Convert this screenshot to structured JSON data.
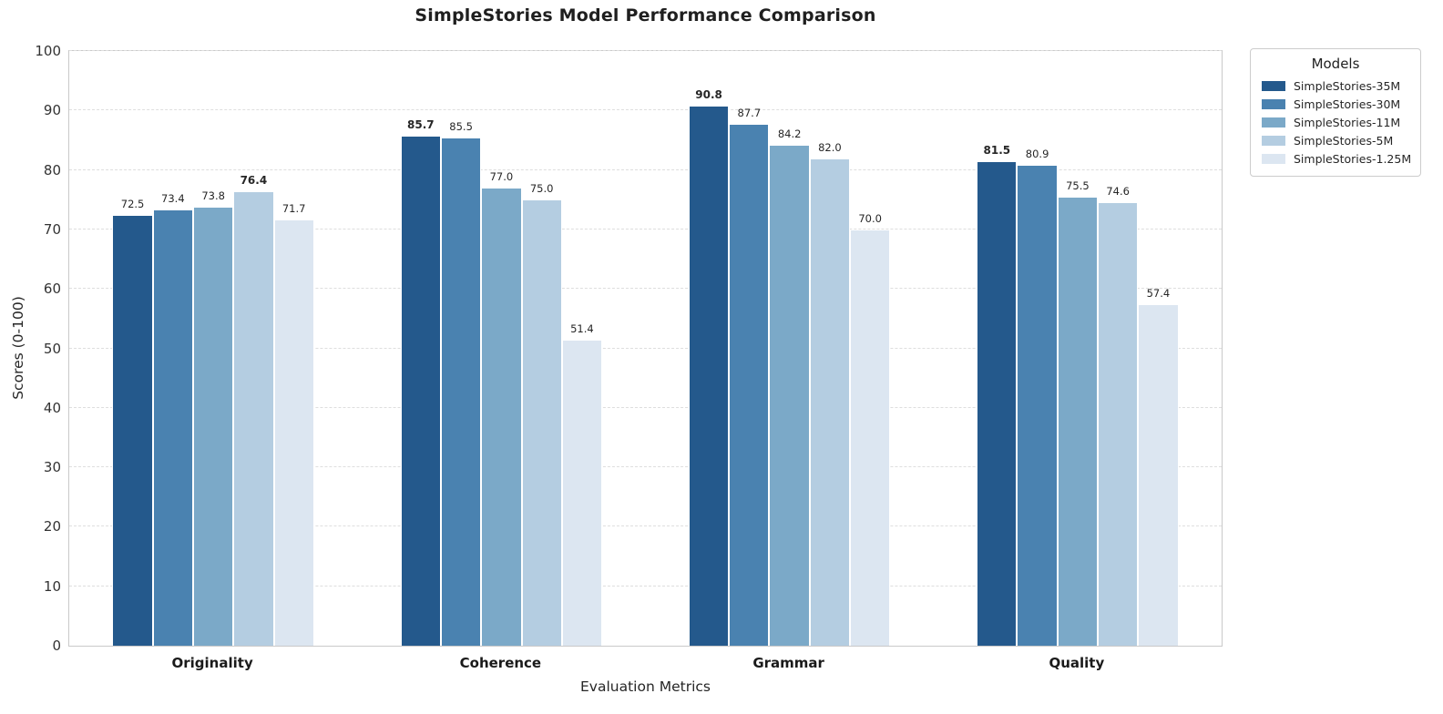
{
  "chart_data": {
    "type": "bar",
    "title": "SimpleStories Model Performance Comparison",
    "xlabel": "Evaluation Metrics",
    "ylabel": "Scores (0-100)",
    "ylim": [
      0,
      100
    ],
    "yticks": [
      0,
      10,
      20,
      30,
      40,
      50,
      60,
      70,
      80,
      90,
      100
    ],
    "grid": "horizontal-dashed",
    "legend_title": "Models",
    "legend_position": "outside-upper-right",
    "categories": [
      "Originality",
      "Coherence",
      "Grammar",
      "Quality"
    ],
    "series": [
      {
        "name": "SimpleStories-35M",
        "color": "#24598C",
        "values": [
          72.5,
          85.7,
          90.8,
          81.5
        ]
      },
      {
        "name": "SimpleStories-30M",
        "color": "#4A82B0",
        "values": [
          73.4,
          85.5,
          87.7,
          80.9
        ]
      },
      {
        "name": "SimpleStories-11M",
        "color": "#7BA9C8",
        "values": [
          73.8,
          77.0,
          84.2,
          75.5
        ]
      },
      {
        "name": "SimpleStories-5M",
        "color": "#B4CDE1",
        "values": [
          76.4,
          75.0,
          82.0,
          74.6
        ]
      },
      {
        "name": "SimpleStories-1.25M",
        "color": "#DCE6F1",
        "values": [
          71.7,
          51.4,
          70.0,
          57.4
        ]
      }
    ],
    "value_label_format": "one-decimal",
    "bold_label_rule": "max-value-per-category",
    "colors": {
      "background": "#ffffff",
      "spine": "#c9c9c9",
      "gridline": "#dedede",
      "title_text": "#1f1f1f",
      "tick_text": "#333333",
      "value_label_text": "#262626",
      "bar_edge": "#ffffff"
    }
  }
}
